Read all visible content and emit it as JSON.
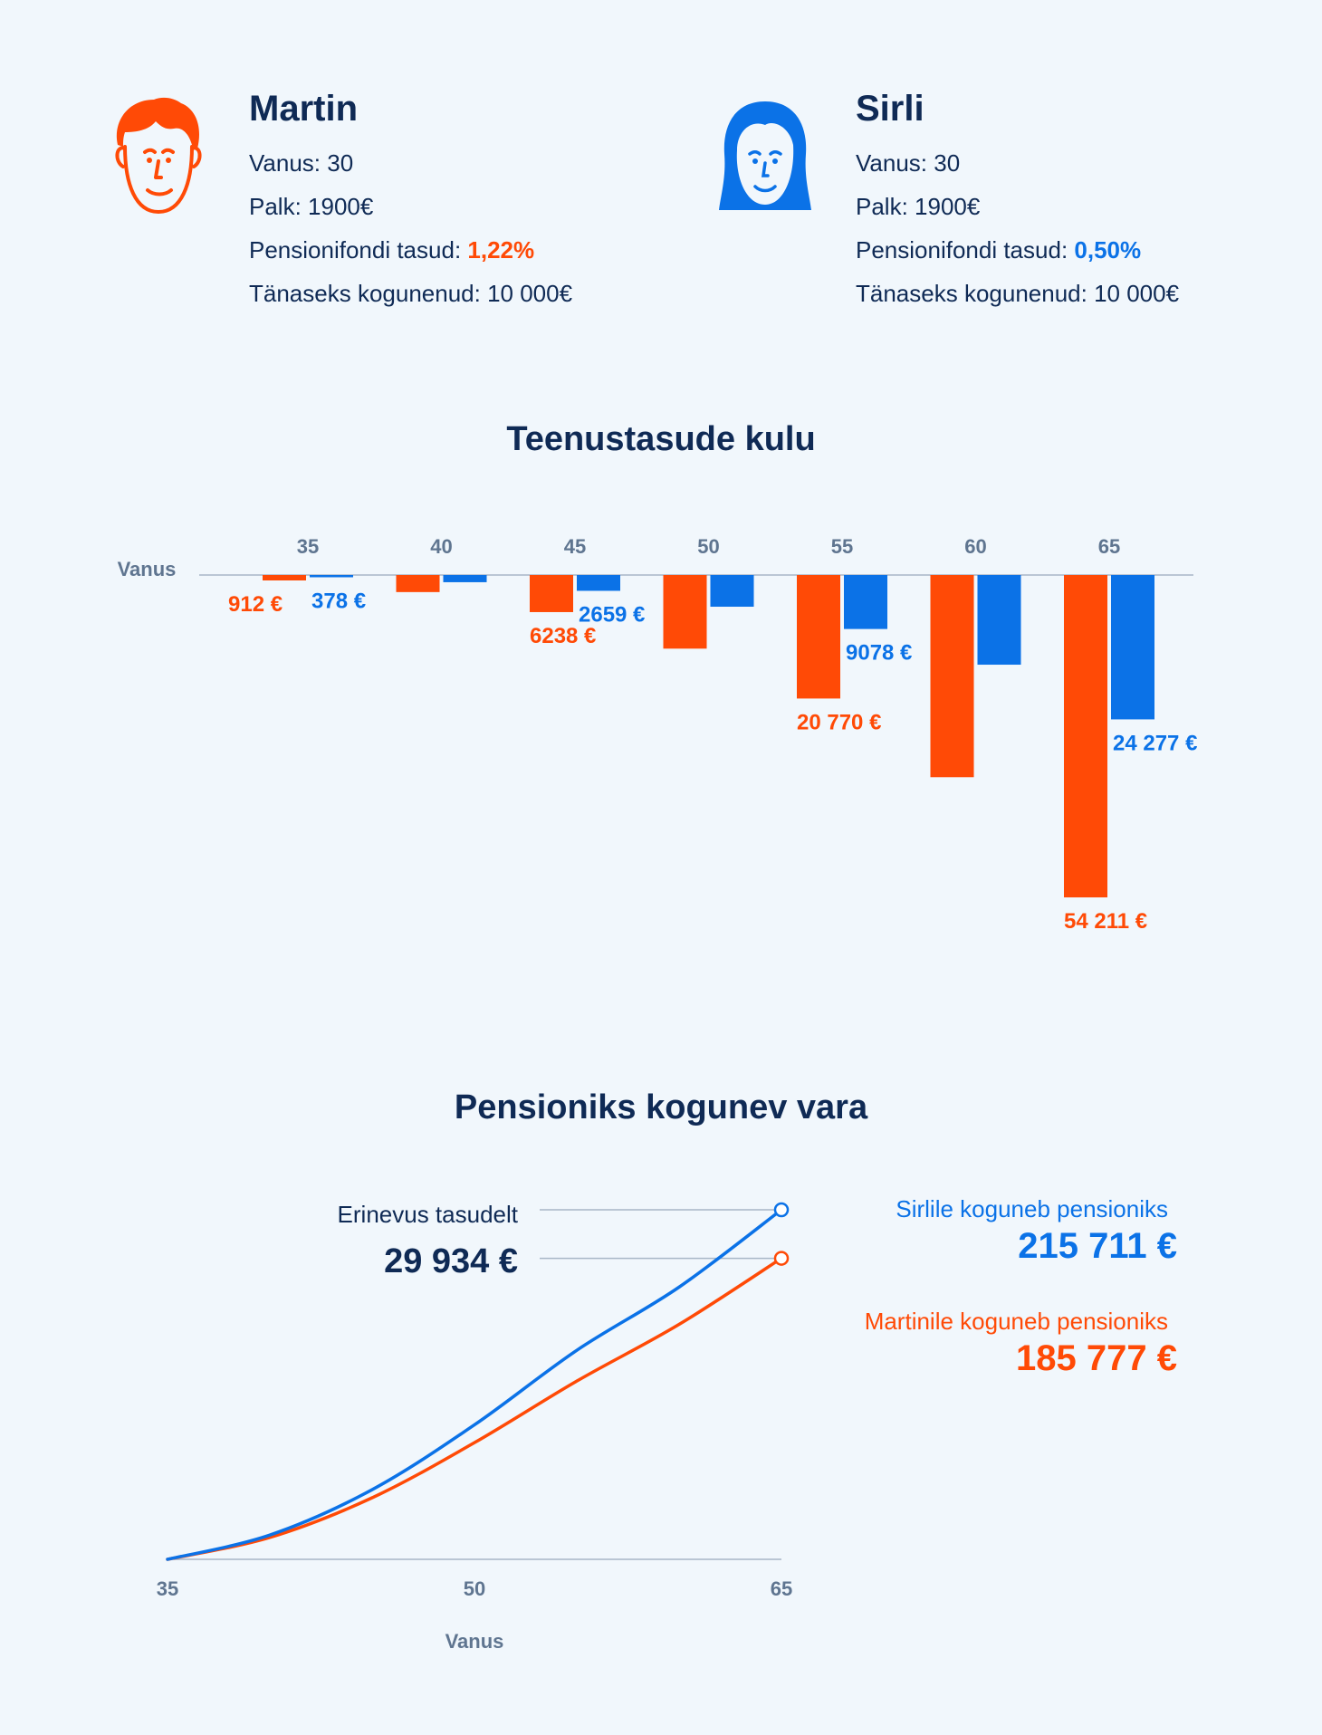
{
  "persons": [
    {
      "name": "Martin",
      "age_line": "Vanus: 30",
      "salary_line": "Palk: 1900€",
      "fee_label": "Pensionifondi tasud: ",
      "fee_value": "1,22%",
      "accumulated_line": "Tänaseks kogunenud: 10 000€",
      "color": "#ff4a06"
    },
    {
      "name": "Sirli",
      "age_line": "Vanus: 30",
      "salary_line": "Palk: 1900€",
      "fee_label": "Pensionifondi tasud: ",
      "fee_value": "0,50%",
      "accumulated_line": "Tänaseks kogunenud: 10 000€",
      "color": "#0b72e7"
    }
  ],
  "colors": {
    "martin": "#ff4a06",
    "sirli": "#0b72e7",
    "text": "#0f2a55",
    "axis": "#a7b6c6",
    "background": "#f1f7fc"
  },
  "chart_data": [
    {
      "type": "bar",
      "title": "Teenustasude kulu",
      "ylabel": "Vanus",
      "categories": [
        "35",
        "40",
        "45",
        "50",
        "55",
        "60",
        "65"
      ],
      "series": [
        {
          "name": "Martin",
          "values": [
            912,
            2870,
            6238,
            12380,
            20770,
            34000,
            54211
          ],
          "color": "#ff4a06"
        },
        {
          "name": "Sirli",
          "values": [
            378,
            1210,
            2659,
            5330,
            9078,
            15080,
            24277
          ],
          "color": "#0b72e7"
        }
      ],
      "data_labels": [
        {
          "series": 0,
          "index": 0,
          "text": "912 €"
        },
        {
          "series": 1,
          "index": 0,
          "text": "378 €"
        },
        {
          "series": 0,
          "index": 2,
          "text": "6238 €"
        },
        {
          "series": 1,
          "index": 2,
          "text": "2659 €"
        },
        {
          "series": 0,
          "index": 4,
          "text": "20 770 €"
        },
        {
          "series": 1,
          "index": 4,
          "text": "9078 €"
        },
        {
          "series": 0,
          "index": 6,
          "text": "54 211 €"
        },
        {
          "series": 1,
          "index": 6,
          "text": "24 277 €"
        }
      ],
      "orientation": "downward bars from top axis"
    },
    {
      "type": "line",
      "title": "Pensioniks kogunev vara",
      "xlabel": "Vanus",
      "x_ticks": [
        "35",
        "50",
        "65"
      ],
      "x": [
        35,
        40,
        45,
        50,
        55,
        60,
        65
      ],
      "xlim": [
        35,
        65
      ],
      "ylim": [
        0,
        215711
      ],
      "series": [
        {
          "name": "Sirli",
          "values": [
            0,
            15000,
            43000,
            83000,
            129000,
            168000,
            215711
          ],
          "color": "#0b72e7"
        },
        {
          "name": "Martin",
          "values": [
            0,
            13500,
            38000,
            72000,
            110000,
            145000,
            185777
          ],
          "color": "#ff4a06"
        }
      ]
    }
  ],
  "bar_section": {
    "title": "Teenustasude kulu",
    "axis_label": "Vanus"
  },
  "line_section": {
    "title": "Pensioniks kogunev vara",
    "axis_label": "Vanus",
    "difference_label": "Erinevus tasudelt",
    "difference_value": "29 934 €",
    "sirli_label": "Sirlile koguneb pensioniks",
    "sirli_value": "215 711 €",
    "martin_label": "Martinile koguneb pensioniks",
    "martin_value": "185 777 €"
  }
}
